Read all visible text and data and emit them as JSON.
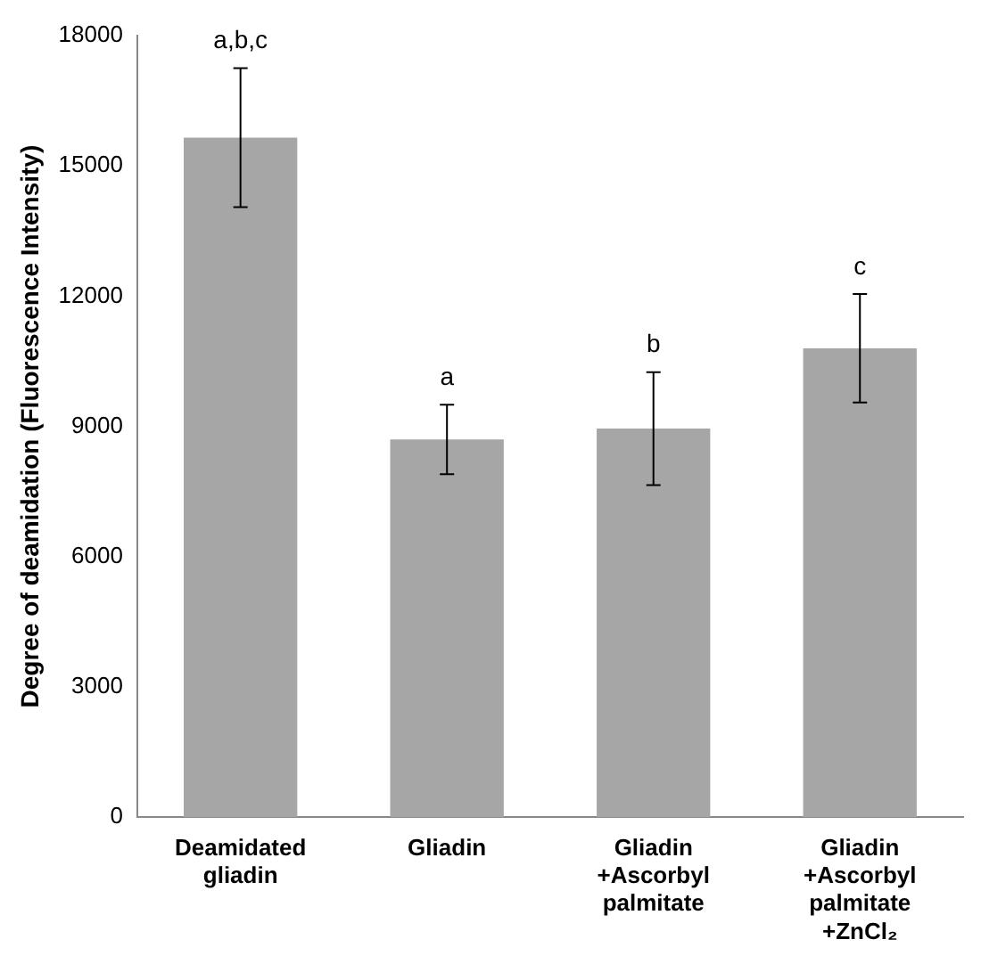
{
  "chart_data": {
    "type": "bar",
    "ylabel": "Degree of deamidation (Fluorescence Intensity)",
    "categories": [
      "Deamidated gliadin",
      "Gliadin",
      "Gliadin +Ascorbyl palmitate",
      "Gliadin +Ascorbyl palmitate +ZnCl₂"
    ],
    "values": [
      15650,
      8700,
      8950,
      10800
    ],
    "errors": [
      1600,
      800,
      1300,
      1250
    ],
    "color": "#a6a6a6",
    "ylim": [
      0,
      18000
    ],
    "yticks": [
      0,
      3000,
      6000,
      9000,
      12000,
      15000,
      18000
    ],
    "grid": false,
    "legend": false,
    "annotations": [
      {
        "text": "a,b,c",
        "x": "Deamidated gliadin",
        "y": 17250
      },
      {
        "text": "a",
        "x": "Gliadin",
        "y": 9500
      },
      {
        "text": "b",
        "x": "Gliadin +Ascorbyl palmitate",
        "y": 10250
      },
      {
        "text": "c",
        "x": "Gliadin +Ascorbyl palmitate +ZnCl₂",
        "y": 12050
      }
    ]
  }
}
